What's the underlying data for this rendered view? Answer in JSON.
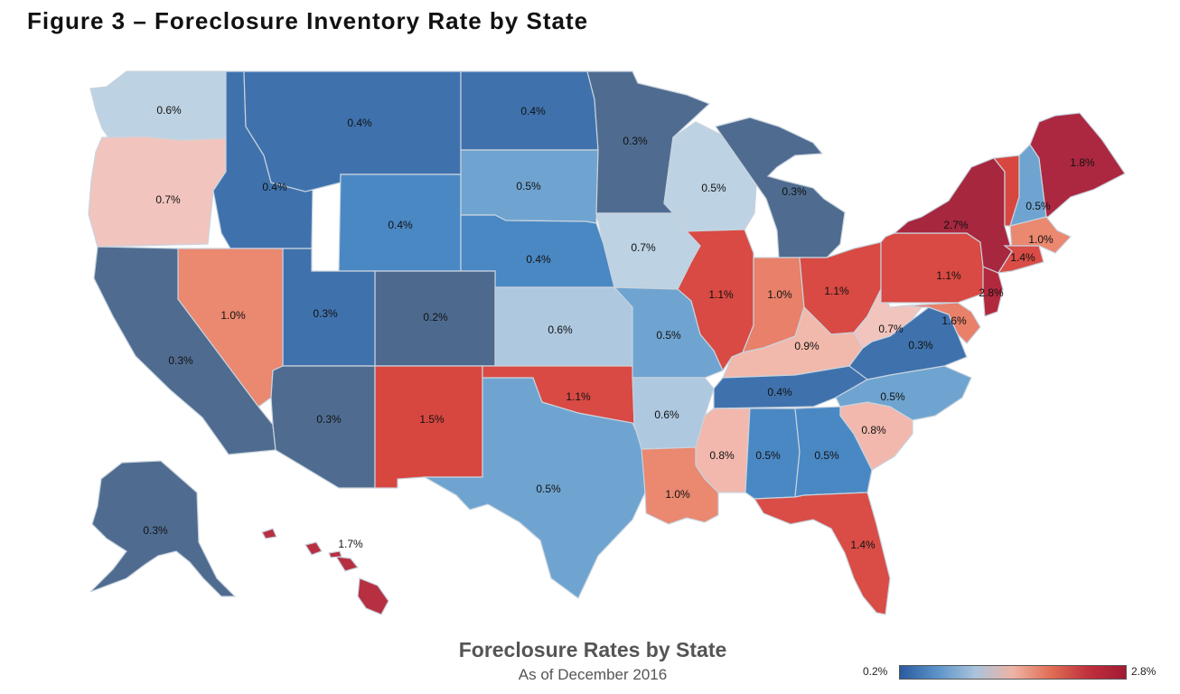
{
  "figure_title": "Figure 3 – Foreclosure Inventory Rate by State",
  "map_title": "Foreclosure Rates by State",
  "map_subtitle": "As of December 2016",
  "legend": {
    "min_label": "0.2%",
    "max_label": "2.8%",
    "min_value": 0.2,
    "max_value": 2.8,
    "colors": [
      "#2a5aa0",
      "#5c93c9",
      "#a9c3db",
      "#efb3a5",
      "#e06f55",
      "#c0303d",
      "#a11a34"
    ]
  },
  "colors": {
    "r02": "#4d6a8e",
    "r03": "#4f6c90",
    "r04a": "#3f72ad",
    "r04b": "#4a88c4",
    "r05": "#6fa4d0",
    "r06": "#aec8df",
    "r07": "#bdd2e3",
    "r07r": "#f2c4be",
    "r08": "#f2b8ad",
    "r09": "#f1b9ab",
    "r10": "#ea8870",
    "r11": "#d84a43",
    "r14": "#d94d46",
    "r15": "#d8473f",
    "r16": "#e8806a",
    "r17": "#b73042",
    "r18": "#ac2840",
    "r27": "#a7273f",
    "r28": "#b2293e"
  },
  "states": [
    {
      "id": "WA",
      "value": "0.6%",
      "color": "r07"
    },
    {
      "id": "OR",
      "value": "0.7%",
      "color": "r07r"
    },
    {
      "id": "CA",
      "value": "0.3%",
      "color": "r03"
    },
    {
      "id": "NV",
      "value": "1.0%",
      "color": "r10"
    },
    {
      "id": "ID",
      "value": "0.4%",
      "color": "r04a"
    },
    {
      "id": "MT",
      "value": "0.4%",
      "color": "r04a"
    },
    {
      "id": "WY",
      "value": "0.4%",
      "color": "r04b"
    },
    {
      "id": "UT",
      "value": "0.3%",
      "color": "r04a"
    },
    {
      "id": "AZ",
      "value": "0.3%",
      "color": "r03"
    },
    {
      "id": "CO",
      "value": "0.2%",
      "color": "r02"
    },
    {
      "id": "NM",
      "value": "1.5%",
      "color": "r15"
    },
    {
      "id": "ND",
      "value": "0.4%",
      "color": "r04a"
    },
    {
      "id": "SD",
      "value": "0.5%",
      "color": "r05"
    },
    {
      "id": "NE",
      "value": "0.4%",
      "color": "r04b"
    },
    {
      "id": "KS",
      "value": "0.6%",
      "color": "r06"
    },
    {
      "id": "OK",
      "value": "1.1%",
      "color": "r11"
    },
    {
      "id": "TX",
      "value": "0.5%",
      "color": "r05"
    },
    {
      "id": "MN",
      "value": "0.3%",
      "color": "r03"
    },
    {
      "id": "IA",
      "value": "0.7%",
      "color": "r07"
    },
    {
      "id": "MO",
      "value": "0.5%",
      "color": "r05"
    },
    {
      "id": "AR",
      "value": "0.6%",
      "color": "r06"
    },
    {
      "id": "LA",
      "value": "1.0%",
      "color": "r10"
    },
    {
      "id": "WI",
      "value": "0.5%",
      "color": "r07"
    },
    {
      "id": "IL",
      "value": "1.1%",
      "color": "r11"
    },
    {
      "id": "MI",
      "value": "0.3%",
      "color": "r03"
    },
    {
      "id": "IN",
      "value": "1.0%",
      "color": "r16"
    },
    {
      "id": "OH",
      "value": "1.1%",
      "color": "r11"
    },
    {
      "id": "KY",
      "value": "0.9%",
      "color": "r09"
    },
    {
      "id": "TN",
      "value": "0.4%",
      "color": "r04a"
    },
    {
      "id": "MS",
      "value": "0.8%",
      "color": "r08"
    },
    {
      "id": "AL",
      "value": "0.5%",
      "color": "r04b"
    },
    {
      "id": "GA",
      "value": "0.5%",
      "color": "r04b"
    },
    {
      "id": "FL",
      "value": "1.4%",
      "color": "r14"
    },
    {
      "id": "SC",
      "value": "0.8%",
      "color": "r08"
    },
    {
      "id": "NC",
      "value": "0.5%",
      "color": "r05"
    },
    {
      "id": "VA",
      "value": "0.3%",
      "color": "r04a"
    },
    {
      "id": "WV",
      "value": "0.7%",
      "color": "r07r"
    },
    {
      "id": "MD",
      "value": "1.6%",
      "color": "r16"
    },
    {
      "id": "PA",
      "value": "1.1%",
      "color": "r11"
    },
    {
      "id": "NJ",
      "value": "2.8%",
      "color": "r28"
    },
    {
      "id": "NY",
      "value": "2.7%",
      "color": "r27"
    },
    {
      "id": "VT",
      "value": "",
      "color": "r15"
    },
    {
      "id": "NH",
      "value": "0.5%",
      "color": "r05"
    },
    {
      "id": "ME",
      "value": "1.8%",
      "color": "r18"
    },
    {
      "id": "MA",
      "value": "1.0%",
      "color": "r10"
    },
    {
      "id": "CT",
      "value": "1.4%",
      "color": "r14"
    },
    {
      "id": "AK",
      "value": "0.3%",
      "color": "r03"
    },
    {
      "id": "HI",
      "value": "1.7%",
      "color": "r17"
    }
  ]
}
